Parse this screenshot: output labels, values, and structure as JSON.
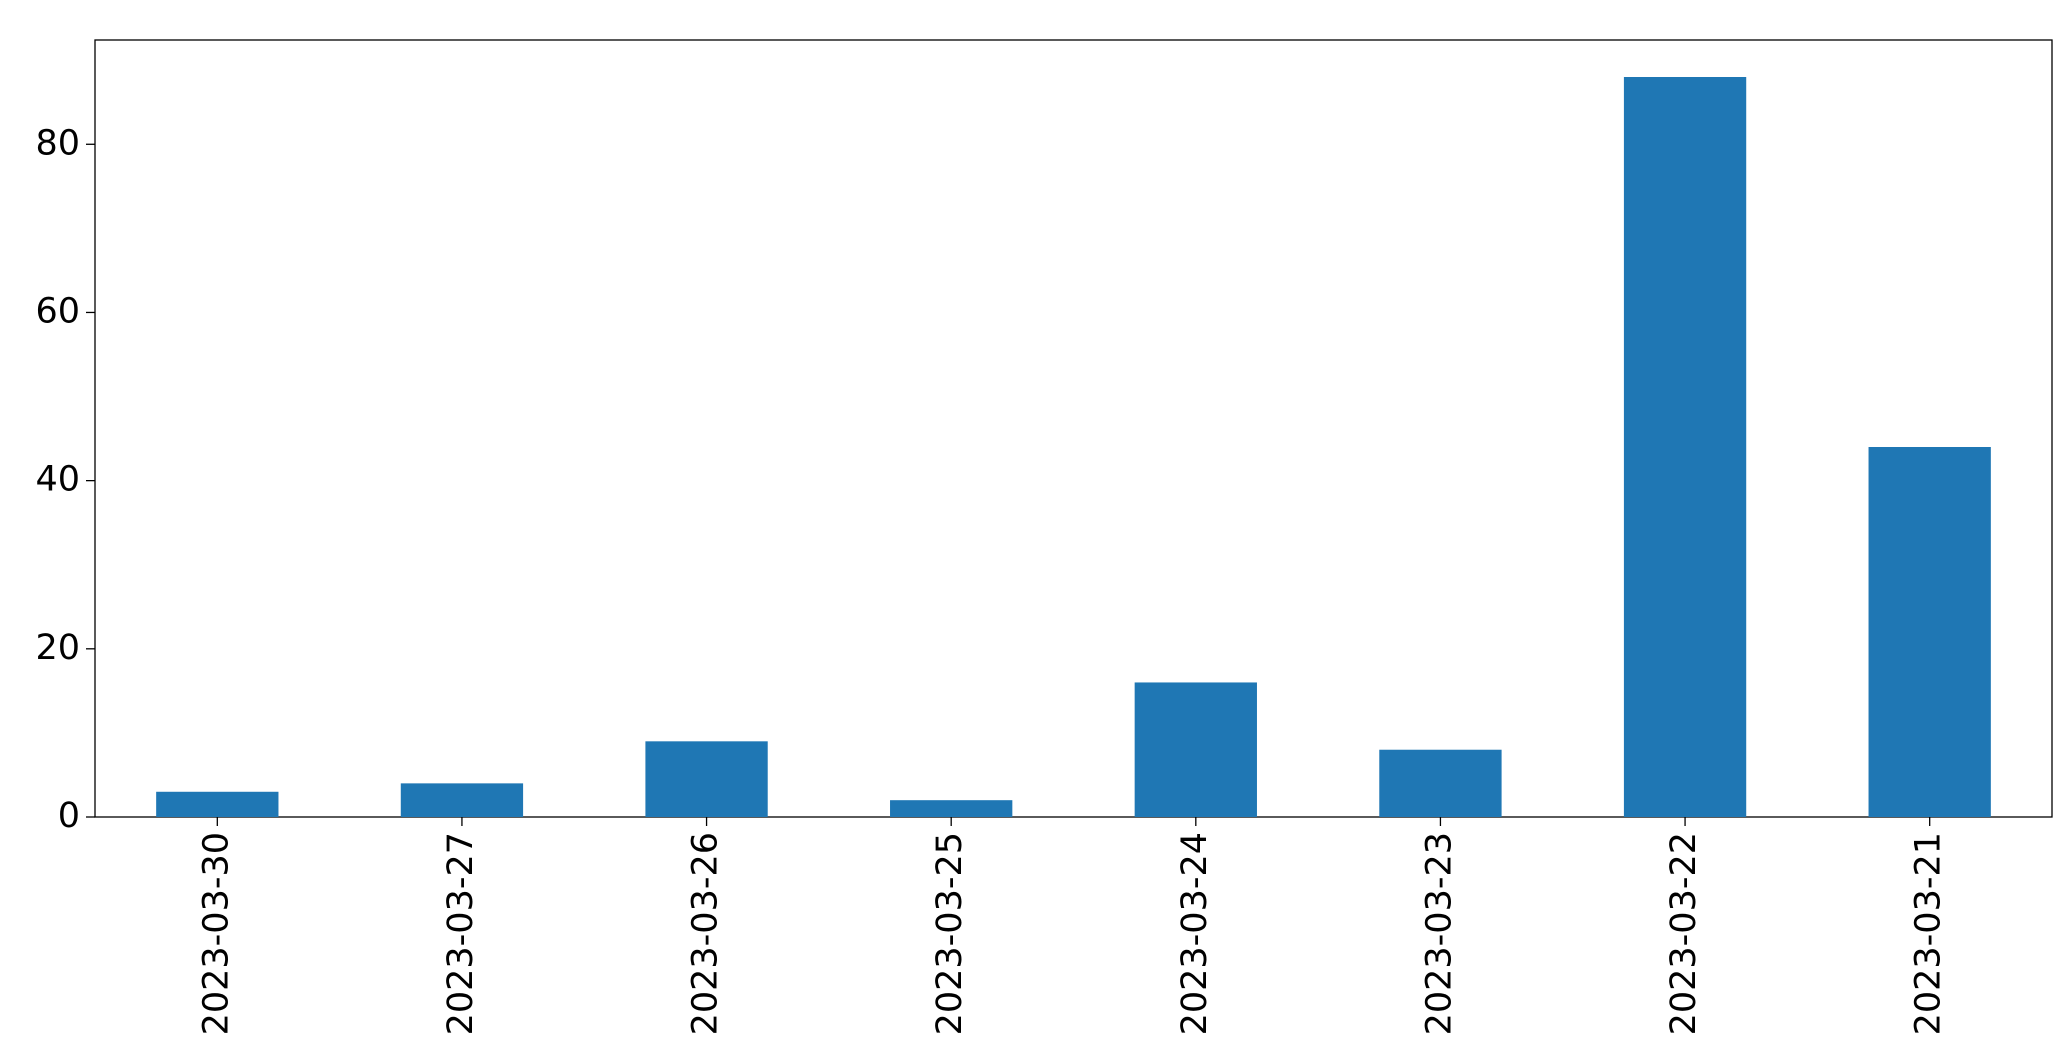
{
  "chart_data": {
    "type": "bar",
    "categories": [
      "2023-03-30",
      "2023-03-27",
      "2023-03-26",
      "2023-03-25",
      "2023-03-24",
      "2023-03-23",
      "2023-03-22",
      "2023-03-21"
    ],
    "values": [
      3,
      4,
      9,
      2,
      16,
      8,
      88,
      44
    ],
    "color": "#1f77b4",
    "ylim": [
      0,
      92.4
    ],
    "yticks": [
      0,
      20,
      40,
      60,
      80
    ],
    "grid": false
  }
}
